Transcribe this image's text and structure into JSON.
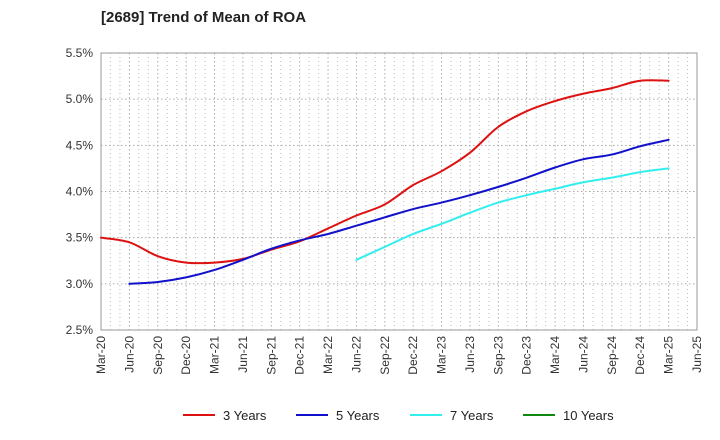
{
  "chart_data": {
    "type": "line",
    "title": "[2689]  Trend of Mean of ROA",
    "xlabel": "",
    "ylabel": "",
    "ylim": [
      2.5,
      5.5
    ],
    "yticks": [
      "2.5%",
      "3.0%",
      "3.5%",
      "4.0%",
      "4.5%",
      "5.0%",
      "5.5%"
    ],
    "ytick_values": [
      2.5,
      3.0,
      3.5,
      4.0,
      4.5,
      5.0,
      5.5
    ],
    "categories": [
      "Mar-20",
      "Jun-20",
      "Sep-20",
      "Dec-20",
      "Mar-21",
      "Jun-21",
      "Sep-21",
      "Dec-21",
      "Mar-22",
      "Jun-22",
      "Sep-22",
      "Dec-22",
      "Mar-23",
      "Jun-23",
      "Sep-23",
      "Dec-23",
      "Mar-24",
      "Jun-24",
      "Sep-24",
      "Dec-24",
      "Mar-25",
      "Jun-25"
    ],
    "grid": true,
    "legend_position": "bottom",
    "series": [
      {
        "name": "3 Years",
        "color": "#dd1111",
        "points": [
          [
            0,
            3.5
          ],
          [
            1,
            3.45
          ],
          [
            2,
            3.3
          ],
          [
            3,
            3.23
          ],
          [
            4,
            3.23
          ],
          [
            5,
            3.27
          ],
          [
            6,
            3.37
          ],
          [
            7,
            3.46
          ],
          [
            8,
            3.6
          ],
          [
            9,
            3.74
          ],
          [
            10,
            3.86
          ],
          [
            11,
            4.07
          ],
          [
            12,
            4.22
          ],
          [
            13,
            4.42
          ],
          [
            14,
            4.7
          ],
          [
            15,
            4.87
          ],
          [
            16,
            4.98
          ],
          [
            17,
            5.06
          ],
          [
            18,
            5.12
          ],
          [
            19,
            5.2
          ],
          [
            20,
            5.2
          ]
        ]
      },
      {
        "name": "5 Years",
        "color": "#1111cc",
        "points": [
          [
            1,
            3.0
          ],
          [
            2,
            3.02
          ],
          [
            3,
            3.07
          ],
          [
            4,
            3.15
          ],
          [
            5,
            3.26
          ],
          [
            6,
            3.38
          ],
          [
            7,
            3.47
          ],
          [
            8,
            3.54
          ],
          [
            9,
            3.63
          ],
          [
            10,
            3.72
          ],
          [
            11,
            3.81
          ],
          [
            12,
            3.88
          ],
          [
            13,
            3.96
          ],
          [
            14,
            4.05
          ],
          [
            15,
            4.15
          ],
          [
            16,
            4.26
          ],
          [
            17,
            4.35
          ],
          [
            18,
            4.4
          ],
          [
            19,
            4.49
          ],
          [
            20,
            4.56
          ]
        ]
      },
      {
        "name": "7 Years",
        "color": "#33eeee",
        "points": [
          [
            9,
            3.26
          ],
          [
            10,
            3.4
          ],
          [
            11,
            3.54
          ],
          [
            12,
            3.65
          ],
          [
            13,
            3.77
          ],
          [
            14,
            3.88
          ],
          [
            15,
            3.96
          ],
          [
            16,
            4.03
          ],
          [
            17,
            4.1
          ],
          [
            18,
            4.15
          ],
          [
            19,
            4.21
          ],
          [
            20,
            4.25
          ]
        ]
      },
      {
        "name": "10 Years",
        "color": "#118811",
        "points": []
      }
    ]
  }
}
